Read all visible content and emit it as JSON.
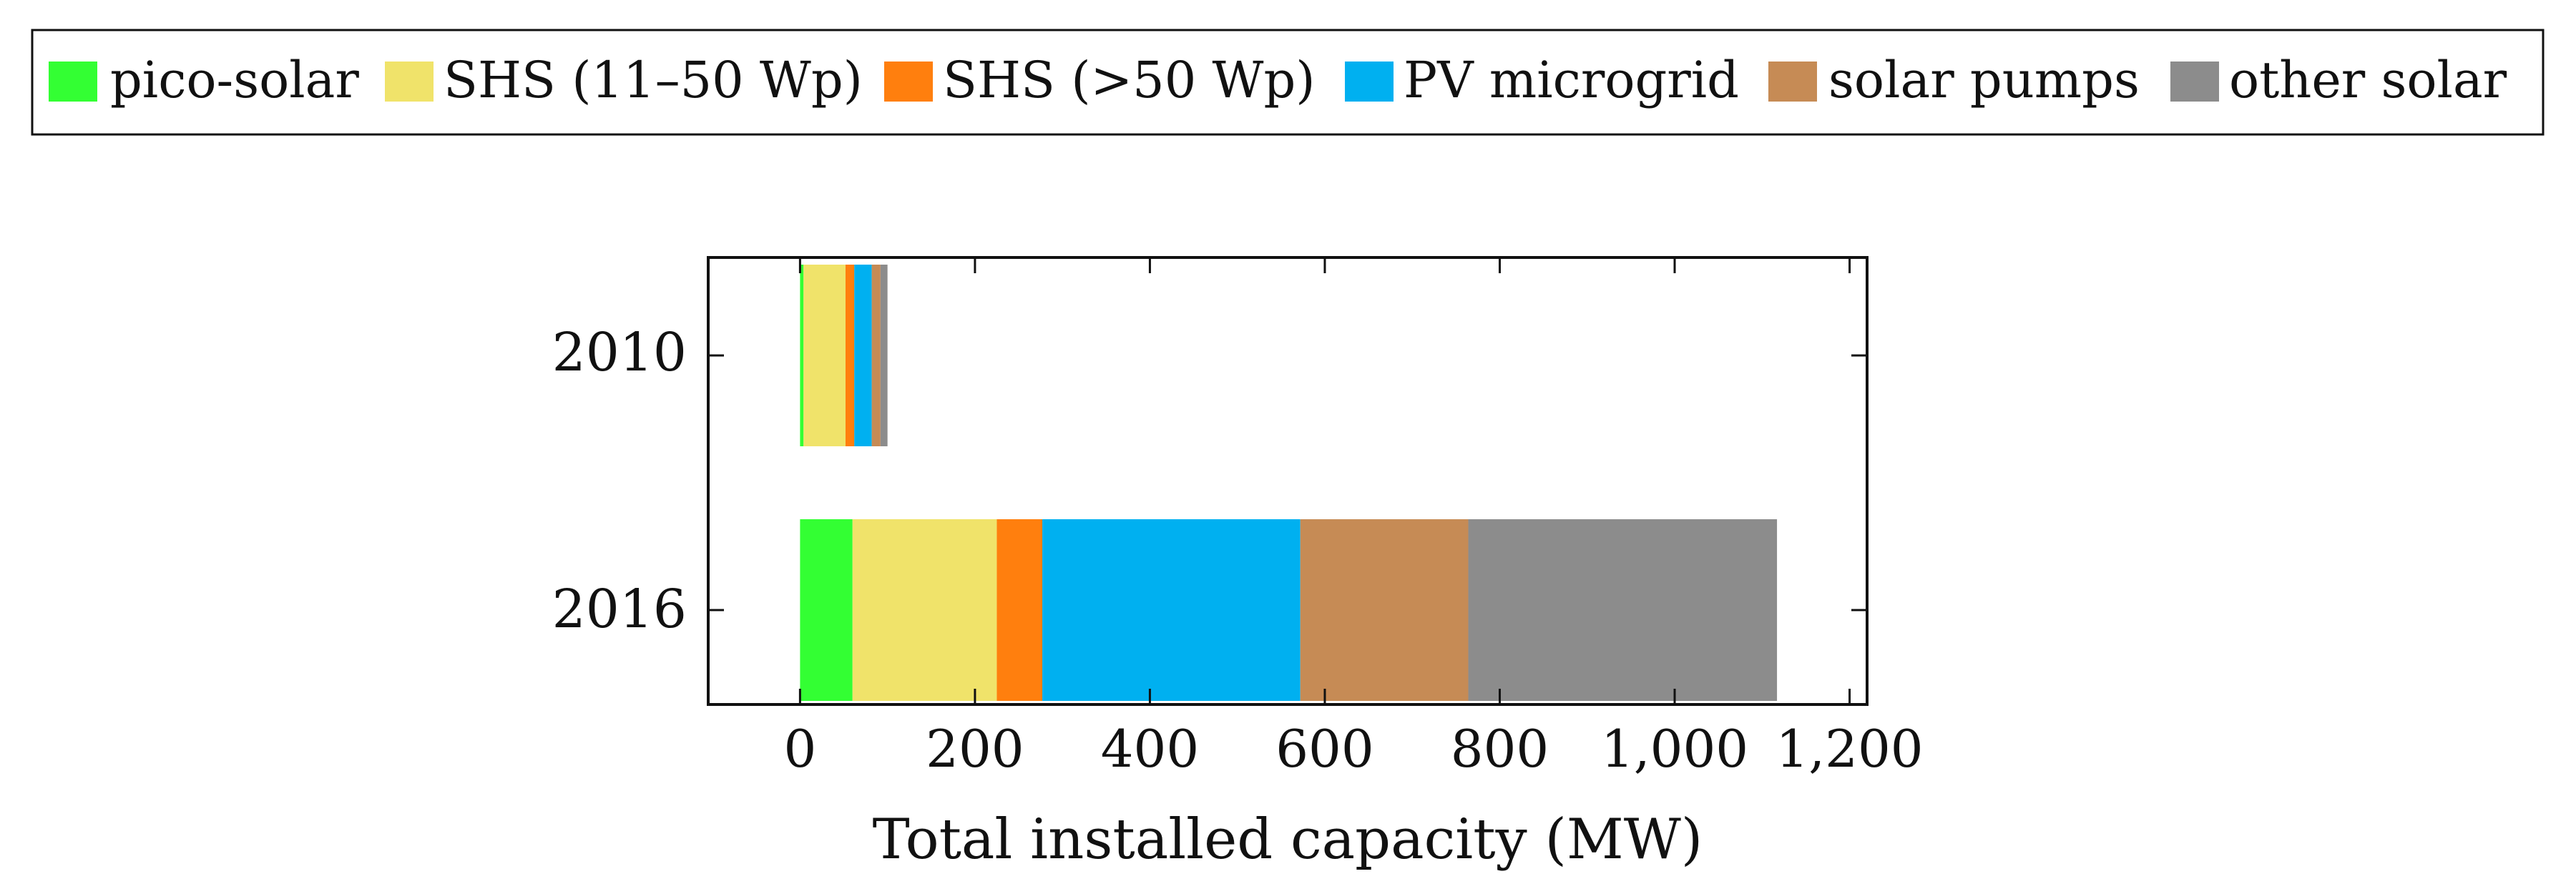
{
  "chart_data": {
    "type": "bar",
    "orientation": "horizontal",
    "stacked": true,
    "categories": [
      "2010",
      "2016"
    ],
    "series": [
      {
        "name": "pico-solar",
        "color": "#33ff33",
        "values": [
          4,
          60
        ]
      },
      {
        "name": "SHS (11–50 Wp)",
        "color": "#f0e36a",
        "values": [
          48,
          165
        ]
      },
      {
        "name": "SHS (>50 Wp)",
        "color": "#ff7f0e",
        "values": [
          10,
          52
        ]
      },
      {
        "name": "PV microgrid",
        "color": "#00b0f0",
        "values": [
          20,
          295
        ]
      },
      {
        "name": "solar pumps",
        "color": "#c68b55",
        "values": [
          10,
          192
        ]
      },
      {
        "name": "other solar",
        "color": "#8c8c8c",
        "values": [
          8,
          353
        ]
      }
    ],
    "xlabel": "Total installed capacity (MW)",
    "ylabel": "",
    "xlim": [
      -105,
      1220
    ],
    "xticks": [
      0,
      200,
      400,
      600,
      800,
      1000,
      1200
    ],
    "xtick_labels": [
      "0",
      "200",
      "400",
      "600",
      "800",
      "1,000",
      "1,200"
    ],
    "legend_position": "top"
  }
}
